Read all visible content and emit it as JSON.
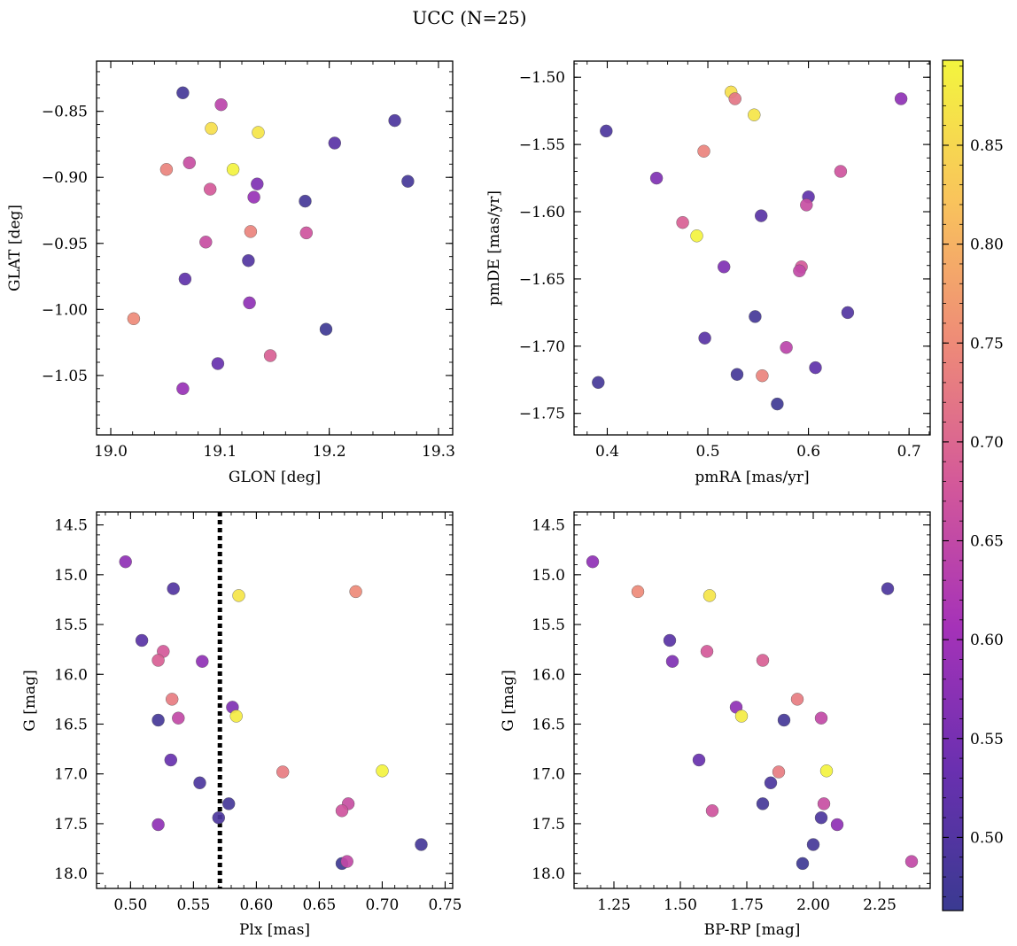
{
  "title": "UCC (N=25)",
  "colormap": {
    "name": "plasma",
    "stops": [
      "#3a3a91",
      "#6a30b0",
      "#a532b8",
      "#d3589a",
      "#ee8a78",
      "#f9c35c",
      "#f3f53e"
    ],
    "range": [
      0.463,
      0.893
    ],
    "ticks": [
      0.5,
      0.55,
      0.6,
      0.65,
      0.7,
      0.75,
      0.8,
      0.85
    ],
    "tick_labels": [
      "0.50",
      "0.55",
      "0.60",
      "0.65",
      "0.70",
      "0.75",
      "0.80",
      "0.85"
    ]
  },
  "chart_data": [
    {
      "type": "scatter",
      "id": "glon-glat",
      "xlabel": "GLON [deg]",
      "ylabel": "GLAT [deg]",
      "xlim": [
        18.987,
        19.313
      ],
      "ylim": [
        -1.095,
        -0.812
      ],
      "yinvert": false,
      "xticks": [
        19.0,
        19.1,
        19.2,
        19.3
      ],
      "xtick_labels": [
        "19.0",
        "19.1",
        "19.2",
        "19.3"
      ],
      "yticks": [
        -0.85,
        -0.9,
        -0.95,
        -1.0,
        -1.05
      ],
      "ytick_labels": [
        "−0.85",
        "−0.90",
        "−0.95",
        "−1.00",
        "−1.05"
      ],
      "x": [
        19.066,
        19.101,
        19.26,
        19.092,
        19.135,
        19.205,
        19.072,
        19.051,
        19.112,
        19.272,
        19.134,
        19.091,
        19.131,
        19.178,
        19.128,
        19.179,
        19.087,
        19.126,
        19.068,
        19.127,
        19.021,
        19.197,
        19.146,
        19.098,
        19.066
      ],
      "y": [
        -0.836,
        -0.845,
        -0.857,
        -0.863,
        -0.866,
        -0.874,
        -0.889,
        -0.894,
        -0.894,
        -0.903,
        -0.905,
        -0.909,
        -0.915,
        -0.918,
        -0.941,
        -0.942,
        -0.949,
        -0.963,
        -0.977,
        -0.995,
        -1.007,
        -1.015,
        -1.035,
        -1.041,
        -1.06
      ],
      "c": [
        0.48,
        0.64,
        0.49,
        0.86,
        0.87,
        0.51,
        0.66,
        0.74,
        0.89,
        0.48,
        0.56,
        0.68,
        0.59,
        0.48,
        0.74,
        0.67,
        0.66,
        0.5,
        0.52,
        0.58,
        0.75,
        0.47,
        0.69,
        0.53,
        0.59
      ]
    },
    {
      "type": "scatter",
      "id": "pmra-pmde",
      "xlabel": "pmRA [mas/yr]",
      "ylabel": "pmDE [mas/yr]",
      "xlim": [
        0.367,
        0.721
      ],
      "ylim": [
        -1.766,
        -1.488
      ],
      "yinvert": false,
      "xticks": [
        0.4,
        0.5,
        0.6,
        0.7
      ],
      "xtick_labels": [
        "0.4",
        "0.5",
        "0.6",
        "0.7"
      ],
      "yticks": [
        -1.5,
        -1.55,
        -1.6,
        -1.65,
        -1.7,
        -1.75
      ],
      "ytick_labels": [
        "−1.50",
        "−1.55",
        "−1.60",
        "−1.65",
        "−1.70",
        "−1.75"
      ],
      "x": [
        0.523,
        0.527,
        0.692,
        0.546,
        0.399,
        0.496,
        0.632,
        0.449,
        0.6,
        0.598,
        0.553,
        0.475,
        0.489,
        0.516,
        0.593,
        0.591,
        0.639,
        0.547,
        0.497,
        0.578,
        0.607,
        0.529,
        0.554,
        0.391,
        0.569
      ],
      "y": [
        -1.511,
        -1.516,
        -1.516,
        -1.528,
        -1.54,
        -1.555,
        -1.57,
        -1.575,
        -1.589,
        -1.595,
        -1.603,
        -1.608,
        -1.618,
        -1.641,
        -1.641,
        -1.644,
        -1.675,
        -1.678,
        -1.694,
        -1.701,
        -1.716,
        -1.721,
        -1.722,
        -1.727,
        -1.743
      ],
      "c": [
        0.86,
        0.72,
        0.58,
        0.87,
        0.49,
        0.74,
        0.67,
        0.56,
        0.52,
        0.66,
        0.51,
        0.69,
        0.89,
        0.56,
        0.68,
        0.65,
        0.5,
        0.48,
        0.51,
        0.64,
        0.52,
        0.48,
        0.74,
        0.48,
        0.47
      ]
    },
    {
      "type": "scatter",
      "id": "plx-g",
      "xlabel": "Plx [mas]",
      "ylabel": "G [mag]",
      "xlim": [
        0.473,
        0.756
      ],
      "ylim": [
        14.37,
        18.15
      ],
      "yinvert": true,
      "vline": {
        "x": 0.571,
        "style": "dotted"
      },
      "xticks": [
        0.5,
        0.55,
        0.6,
        0.65,
        0.7,
        0.75
      ],
      "xtick_labels": [
        "0.50",
        "0.55",
        "0.60",
        "0.65",
        "0.70",
        "0.75"
      ],
      "yticks": [
        14.5,
        15.0,
        15.5,
        16.0,
        16.5,
        17.0,
        17.5,
        18.0
      ],
      "ytick_labels": [
        "14.5",
        "15.0",
        "15.5",
        "16.0",
        "16.5",
        "17.0",
        "17.5",
        "18.0"
      ],
      "x": [
        0.496,
        0.534,
        0.586,
        0.679,
        0.509,
        0.526,
        0.522,
        0.557,
        0.533,
        0.581,
        0.584,
        0.522,
        0.538,
        0.532,
        0.621,
        0.7,
        0.555,
        0.578,
        0.673,
        0.668,
        0.57,
        0.522,
        0.731,
        0.668,
        0.672
      ],
      "y": [
        14.87,
        15.14,
        15.21,
        15.17,
        15.66,
        15.77,
        15.86,
        15.87,
        16.25,
        16.33,
        16.42,
        16.46,
        16.44,
        16.86,
        16.98,
        16.97,
        17.09,
        17.3,
        17.3,
        17.37,
        17.44,
        17.51,
        17.71,
        17.9,
        17.88
      ],
      "c": [
        0.58,
        0.5,
        0.87,
        0.75,
        0.51,
        0.68,
        0.69,
        0.58,
        0.73,
        0.56,
        0.88,
        0.48,
        0.65,
        0.53,
        0.73,
        0.89,
        0.49,
        0.48,
        0.66,
        0.67,
        0.49,
        0.58,
        0.48,
        0.47,
        0.65
      ]
    },
    {
      "type": "scatter",
      "id": "bprp-g",
      "xlabel": "BP-RP [mag]",
      "ylabel": "G [mag]",
      "xlim": [
        1.1,
        2.44
      ],
      "ylim": [
        14.37,
        18.15
      ],
      "yinvert": true,
      "xticks": [
        1.25,
        1.5,
        1.75,
        2.0,
        2.25
      ],
      "xtick_labels": [
        "1.25",
        "1.50",
        "1.75",
        "2.00",
        "2.25"
      ],
      "yticks": [
        14.5,
        15.0,
        15.5,
        16.0,
        16.5,
        17.0,
        17.5,
        18.0
      ],
      "ytick_labels": [
        "14.5",
        "15.0",
        "15.5",
        "16.0",
        "16.5",
        "17.0",
        "17.5",
        "18.0"
      ],
      "x": [
        1.17,
        2.28,
        1.61,
        1.34,
        1.46,
        1.6,
        1.47,
        1.81,
        1.94,
        1.71,
        1.73,
        1.89,
        2.03,
        1.57,
        1.87,
        2.05,
        1.84,
        1.81,
        2.04,
        1.62,
        2.03,
        2.09,
        2.0,
        1.96,
        2.37
      ],
      "y": [
        14.87,
        15.14,
        15.21,
        15.17,
        15.66,
        15.77,
        15.87,
        15.86,
        16.25,
        16.33,
        16.42,
        16.46,
        16.44,
        16.86,
        16.98,
        16.97,
        17.09,
        17.3,
        17.3,
        17.37,
        17.44,
        17.51,
        17.71,
        17.9,
        17.88
      ],
      "c": [
        0.58,
        0.49,
        0.87,
        0.75,
        0.51,
        0.68,
        0.56,
        0.69,
        0.73,
        0.58,
        0.88,
        0.48,
        0.65,
        0.53,
        0.73,
        0.89,
        0.49,
        0.48,
        0.66,
        0.67,
        0.49,
        0.58,
        0.48,
        0.47,
        0.65
      ]
    }
  ]
}
